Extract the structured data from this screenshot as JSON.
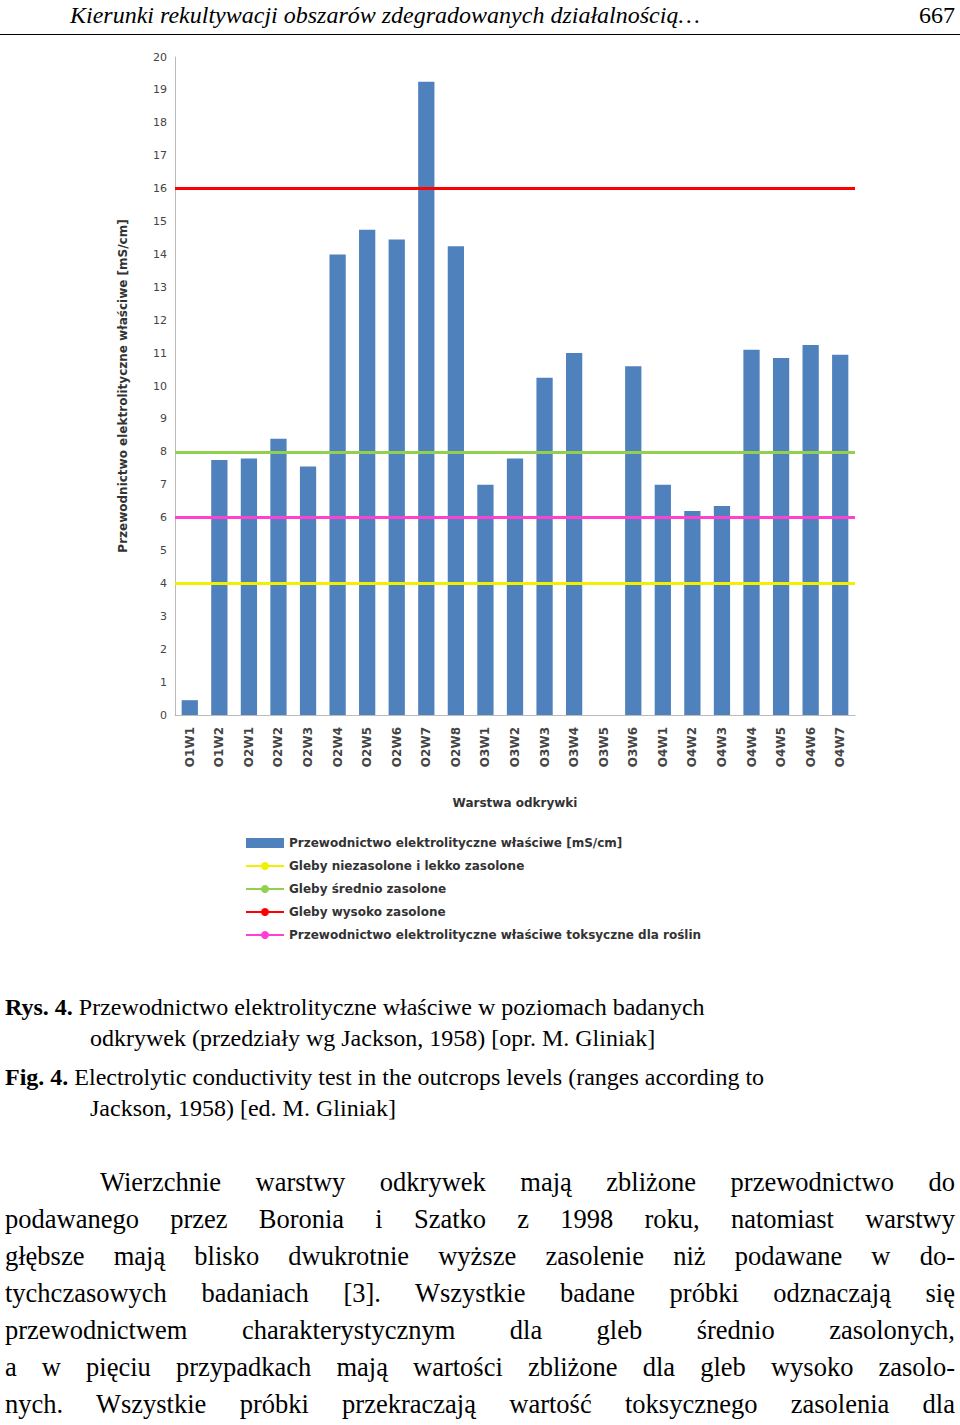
{
  "header": {
    "title": "Kierunki rekultywacji obszarów zdegradowanych działalnością…",
    "page": "667"
  },
  "chart_data": {
    "type": "bar",
    "x_label": "Warstwa odkrywki",
    "y_label": "Przewodnictwo elektrolityczne właściwe [mS/cm]",
    "categories": [
      "O1W1",
      "O1W2",
      "O2W1",
      "O2W2",
      "O2W3",
      "O2W4",
      "O2W5",
      "O2W6",
      "O2W7",
      "O2W8",
      "O3W1",
      "O3W2",
      "O3W3",
      "O3W4",
      "O3W5",
      "O3W6",
      "O4W1",
      "O4W2",
      "O4W3",
      "O4W4",
      "O4W5",
      "O4W6",
      "O4W7"
    ],
    "series": [
      {
        "name": "Przewodnictwo elektrolityczne właściwe [mS/cm]",
        "color": "#4f81bd",
        "values": [
          0.45,
          7.75,
          7.8,
          8.4,
          7.55,
          14.0,
          14.75,
          14.45,
          19.25,
          14.25,
          7.0,
          7.8,
          10.25,
          11.0,
          null,
          10.6,
          7.0,
          6.2,
          6.35,
          11.1,
          10.85,
          11.25,
          10.95
        ]
      }
    ],
    "reference_lines": [
      {
        "name": "Gleby niezasolone i lekko zasolone",
        "value": 4,
        "color": "#f0f000"
      },
      {
        "name": "Gleby średnio zasolone",
        "value": 8,
        "color": "#92d050"
      },
      {
        "name": "Gleby wysoko zasolone",
        "value": 16,
        "color": "#ff0000"
      },
      {
        "name": "Przewodnictwo elektrolityczne właściwe toksyczne dla roślin",
        "value": 6,
        "color": "#ff40d0"
      }
    ],
    "ylim": [
      0,
      20
    ],
    "yticks": [
      0,
      1,
      2,
      3,
      4,
      5,
      6,
      7,
      8,
      9,
      10,
      11,
      12,
      13,
      14,
      15,
      16,
      17,
      18,
      19,
      20
    ],
    "grid": false,
    "legend": "bottom"
  },
  "caption": [
    {
      "label": "Rys. 4.",
      "lines": [
        "Przewodnictwo elektrolityczne właściwe w poziomach badanych",
        "odkrywek (przedziały wg Jackson, 1958) [opr. M. Gliniak]"
      ]
    },
    {
      "label": "Fig. 4.",
      "lines": [
        "Electrolytic conductivity test in the outcrops levels (ranges according to",
        "Jackson, 1958) [ed. M. Gliniak]"
      ]
    }
  ],
  "body": {
    "lines": [
      "Wierzchnie warstwy odkrywek mają zbliżone przewodnictwo do",
      "podawanego przez Boronia i Szatko z 1998 roku, natomiast warstwy",
      "głębsze mają blisko dwukrotnie wyższe zasolenie niż podawane w do-",
      "tychczasowych badaniach [3]. Wszystkie badane próbki odznaczają się",
      "przewodnictwem charakterystycznym dla gleb średnio zasolonych,",
      "a w pięciu przypadkach mają wartości zbliżone dla gleb wysoko zasolo-",
      "nych. Wszystkie próbki przekraczają wartość toksycznego zasolenia dla"
    ]
  }
}
